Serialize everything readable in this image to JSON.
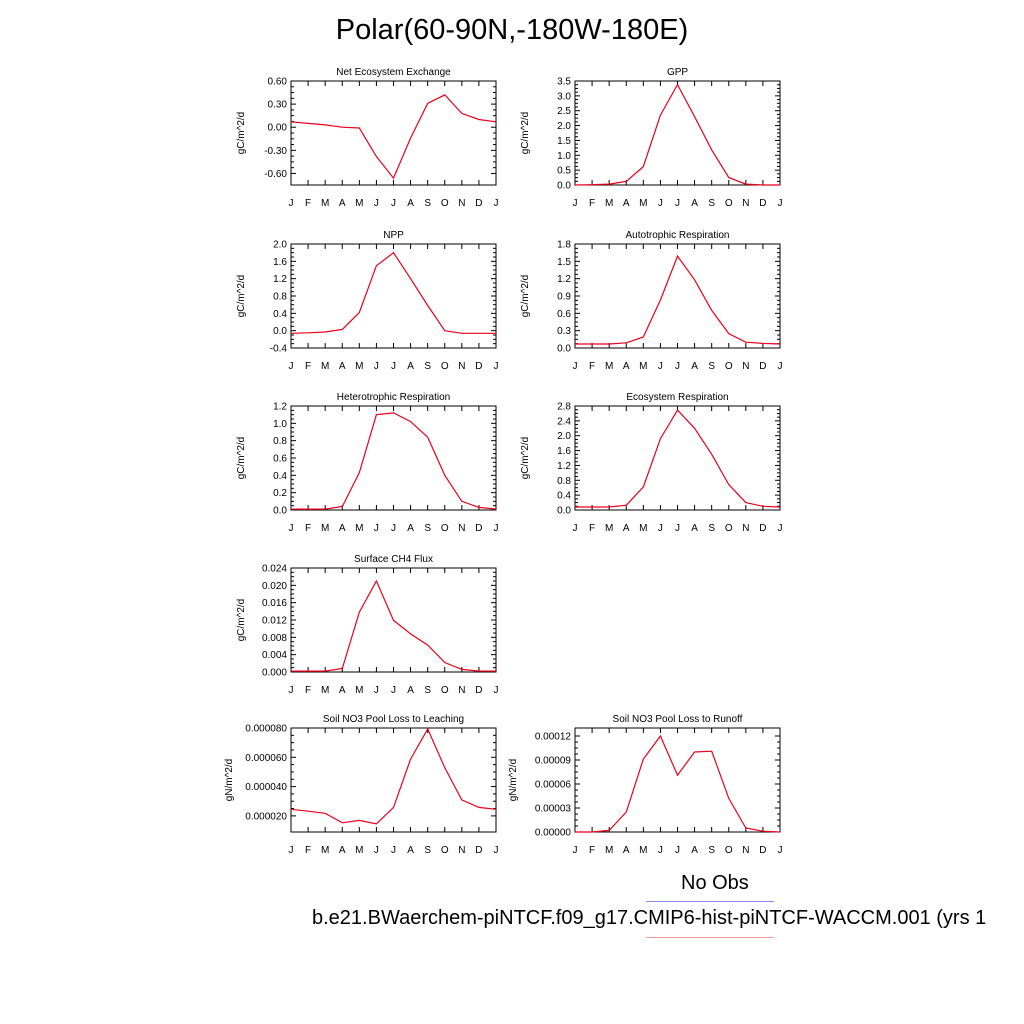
{
  "page": {
    "title": "Polar(60-90N,-180W-180E)"
  },
  "legend": {
    "obs_label": "No Obs",
    "obs_color": "#8c8cf0",
    "case_label": "b.e21.BWaerchem-piNTCF.f09_g17.CMIP6-hist-piNTCF-WACCM.001 (yrs 1",
    "case_color": "#ff9999"
  },
  "line_color": "#e8001c",
  "months": [
    "J",
    "F",
    "M",
    "A",
    "M",
    "J",
    "J",
    "A",
    "S",
    "O",
    "N",
    "D",
    "J"
  ],
  "chart_data": [
    {
      "type": "line",
      "title": "Net Ecosystem Exchange",
      "ylabel": "gC/m^2/d",
      "ylim": [
        -0.75,
        0.6
      ],
      "yticks": [
        -0.6,
        -0.3,
        0.0,
        0.3,
        0.6
      ],
      "ytick_labels": [
        "-0.60",
        "-0.30",
        "0.00",
        "0.30",
        "0.60"
      ],
      "series": [
        {
          "values": [
            0.07,
            0.05,
            0.03,
            0.0,
            -0.01,
            -0.38,
            -0.66,
            -0.14,
            0.31,
            0.42,
            0.18,
            0.1,
            0.07
          ]
        }
      ]
    },
    {
      "type": "line",
      "title": "GPP",
      "ylabel": "gC/m^2/d",
      "ylim": [
        0,
        3.5
      ],
      "yticks": [
        0,
        0.5,
        1.0,
        1.5,
        2.0,
        2.5,
        3.0,
        3.5
      ],
      "ytick_labels": [
        "0.0",
        "0.5",
        "1.0",
        "1.5",
        "2.0",
        "2.5",
        "3.0",
        "3.5"
      ],
      "series": [
        {
          "values": [
            0.0,
            0.01,
            0.03,
            0.12,
            0.62,
            2.35,
            3.38,
            2.3,
            1.18,
            0.25,
            0.03,
            0.0,
            0.0
          ]
        }
      ]
    },
    {
      "type": "line",
      "title": "NPP",
      "ylabel": "gC/m^2/d",
      "ylim": [
        -0.4,
        2.0
      ],
      "yticks": [
        -0.4,
        0.0,
        0.4,
        0.8,
        1.2,
        1.6,
        2.0
      ],
      "ytick_labels": [
        "-0.4",
        "0.0",
        "0.4",
        "0.8",
        "1.2",
        "1.6",
        "2.0"
      ],
      "series": [
        {
          "values": [
            -0.06,
            -0.05,
            -0.03,
            0.03,
            0.42,
            1.5,
            1.8,
            1.2,
            0.58,
            0.0,
            -0.06,
            -0.06,
            -0.06
          ]
        }
      ]
    },
    {
      "type": "line",
      "title": "Autotrophic Respiration",
      "ylabel": "gC/m^2/d",
      "ylim": [
        0,
        1.8
      ],
      "yticks": [
        0,
        0.3,
        0.6,
        0.9,
        1.2,
        1.5,
        1.8
      ],
      "ytick_labels": [
        "0.0",
        "0.3",
        "0.6",
        "0.9",
        "1.2",
        "1.5",
        "1.8"
      ],
      "series": [
        {
          "values": [
            0.07,
            0.07,
            0.07,
            0.09,
            0.19,
            0.83,
            1.59,
            1.18,
            0.65,
            0.25,
            0.1,
            0.08,
            0.07
          ]
        }
      ]
    },
    {
      "type": "line",
      "title": "Heterotrophic Respiration",
      "ylabel": "gC/m^2/d",
      "ylim": [
        0,
        1.2
      ],
      "yticks": [
        0,
        0.2,
        0.4,
        0.6,
        0.8,
        1.0,
        1.2
      ],
      "ytick_labels": [
        "0.0",
        "0.2",
        "0.4",
        "0.6",
        "0.8",
        "1.0",
        "1.2"
      ],
      "series": [
        {
          "values": [
            0.01,
            0.01,
            0.01,
            0.04,
            0.43,
            1.1,
            1.12,
            1.02,
            0.84,
            0.4,
            0.1,
            0.03,
            0.01
          ]
        }
      ]
    },
    {
      "type": "line",
      "title": "Ecosystem Respiration",
      "ylabel": "gC/m^2/d",
      "ylim": [
        0,
        2.8
      ],
      "yticks": [
        0,
        0.4,
        0.8,
        1.2,
        1.6,
        2.0,
        2.4,
        2.8
      ],
      "ytick_labels": [
        "0.0",
        "0.4",
        "0.8",
        "1.2",
        "1.6",
        "2.0",
        "2.4",
        "2.8"
      ],
      "series": [
        {
          "values": [
            0.08,
            0.08,
            0.08,
            0.13,
            0.62,
            1.92,
            2.69,
            2.2,
            1.5,
            0.68,
            0.2,
            0.1,
            0.08
          ]
        }
      ]
    },
    {
      "type": "line",
      "title": "Surface CH4 Flux",
      "ylabel": "gC/m^2/d",
      "ylim": [
        0,
        0.024
      ],
      "yticks": [
        0,
        0.004,
        0.008,
        0.012,
        0.016,
        0.02,
        0.024
      ],
      "ytick_labels": [
        "0.000",
        "0.004",
        "0.008",
        "0.012",
        "0.016",
        "0.020",
        "0.024"
      ],
      "series": [
        {
          "values": [
            0.0002,
            0.0002,
            0.0002,
            0.0008,
            0.0138,
            0.021,
            0.0119,
            0.0088,
            0.0062,
            0.0022,
            0.0006,
            0.0002,
            0.0002
          ]
        }
      ]
    },
    {
      "type": "line",
      "title": "Soil NO3 Pool Loss to Leaching",
      "ylabel": "gN/m^2/d",
      "ylim": [
        9e-06,
        8e-05
      ],
      "yticks": [
        2e-05,
        4e-05,
        6e-05,
        8e-05
      ],
      "ytick_labels": [
        "0.000020",
        "0.000040",
        "0.000060",
        "0.000080"
      ],
      "series": [
        {
          "values": [
            2.45e-05,
            2.32e-05,
            2.18e-05,
            1.53e-05,
            1.69e-05,
            1.45e-05,
            2.58e-05,
            5.88e-05,
            7.94e-05,
            5.28e-05,
            3.09e-05,
            2.58e-05,
            2.45e-05
          ]
        }
      ]
    },
    {
      "type": "line",
      "title": "Soil NO3 Pool Loss to Runoff",
      "ylabel": "gN/m^2/d",
      "ylim": [
        0,
        0.00013
      ],
      "yticks": [
        0,
        3e-05,
        6e-05,
        9e-05,
        0.00012
      ],
      "ytick_labels": [
        "0.00000",
        "0.00003",
        "0.00006",
        "0.00009",
        "0.00012"
      ],
      "series": [
        {
          "values": [
            0.0,
            0.0,
            2e-06,
            2.5e-05,
            9.1e-05,
            0.00012,
            7.1e-05,
            0.0001,
            0.000101,
            4.2e-05,
            5e-06,
            1e-06,
            0.0
          ]
        }
      ]
    }
  ]
}
